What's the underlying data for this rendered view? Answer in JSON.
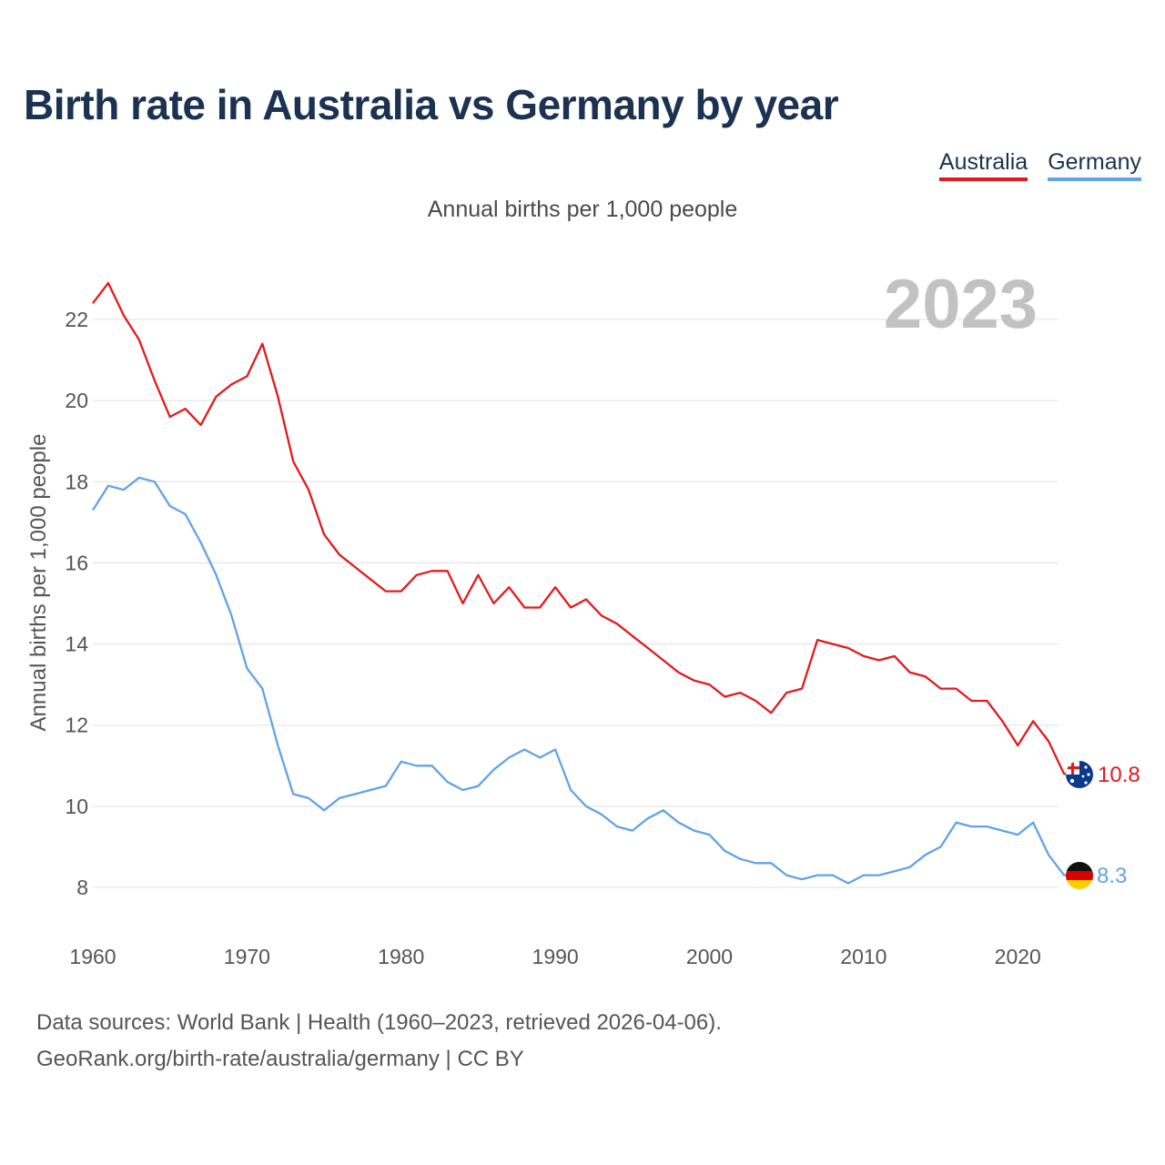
{
  "header": {
    "title": "Birth rate in Australia vs Germany by year",
    "subtitle": "Annual births per 1,000 people"
  },
  "legend": [
    {
      "label": "Australia",
      "color": "#e31a1c"
    },
    {
      "label": "Germany",
      "color": "#62a3e6"
    }
  ],
  "year_watermark": "2023",
  "chart_data": {
    "type": "line",
    "title": "Birth rate in Australia vs Germany by year",
    "subtitle": "Annual births per 1,000 people",
    "xlabel": "",
    "ylabel": "Annual births per 1,000 people",
    "xlim": [
      1960,
      2023
    ],
    "ylim": [
      7,
      23.3
    ],
    "x_ticks": [
      1960,
      1970,
      1980,
      1990,
      2000,
      2010,
      2020
    ],
    "y_ticks": [
      8,
      10,
      12,
      14,
      16,
      18,
      20,
      22
    ],
    "grid": true,
    "legend_position": "top-right",
    "x": [
      1960,
      1961,
      1962,
      1963,
      1964,
      1965,
      1966,
      1967,
      1968,
      1969,
      1970,
      1971,
      1972,
      1973,
      1974,
      1975,
      1976,
      1977,
      1978,
      1979,
      1980,
      1981,
      1982,
      1983,
      1984,
      1985,
      1986,
      1987,
      1988,
      1989,
      1990,
      1991,
      1992,
      1993,
      1994,
      1995,
      1996,
      1997,
      1998,
      1999,
      2000,
      2001,
      2002,
      2003,
      2004,
      2005,
      2006,
      2007,
      2008,
      2009,
      2010,
      2011,
      2012,
      2013,
      2014,
      2015,
      2016,
      2017,
      2018,
      2019,
      2020,
      2021,
      2022,
      2023
    ],
    "series": [
      {
        "name": "Australia",
        "color": "#e31a1c",
        "end_label": "10.8",
        "flag": "australia-flag",
        "values": [
          22.4,
          22.9,
          22.1,
          21.5,
          20.5,
          19.6,
          19.8,
          19.4,
          20.1,
          20.4,
          20.6,
          21.4,
          20.1,
          18.5,
          17.8,
          16.7,
          16.2,
          15.9,
          15.6,
          15.3,
          15.3,
          15.7,
          15.8,
          15.8,
          15.0,
          15.7,
          15.0,
          15.4,
          14.9,
          14.9,
          15.4,
          14.9,
          15.1,
          14.7,
          14.5,
          14.2,
          13.9,
          13.6,
          13.3,
          13.1,
          13.0,
          12.7,
          12.8,
          12.6,
          12.3,
          12.8,
          12.9,
          14.1,
          14.0,
          13.9,
          13.7,
          13.6,
          13.7,
          13.3,
          13.2,
          12.9,
          12.9,
          12.6,
          12.6,
          12.1,
          11.5,
          12.1,
          11.6,
          10.8
        ]
      },
      {
        "name": "Germany",
        "color": "#62a3e6",
        "end_label": "8.3",
        "flag": "germany-flag",
        "values": [
          17.3,
          17.9,
          17.8,
          18.1,
          18.0,
          17.4,
          17.2,
          16.5,
          15.7,
          14.7,
          13.4,
          12.9,
          11.5,
          10.3,
          10.2,
          9.9,
          10.2,
          10.3,
          10.4,
          10.5,
          11.1,
          11.0,
          11.0,
          10.6,
          10.4,
          10.5,
          10.9,
          11.2,
          11.4,
          11.2,
          11.4,
          10.4,
          10.0,
          9.8,
          9.5,
          9.4,
          9.7,
          9.9,
          9.6,
          9.4,
          9.3,
          8.9,
          8.7,
          8.6,
          8.6,
          8.3,
          8.2,
          8.3,
          8.3,
          8.1,
          8.3,
          8.3,
          8.4,
          8.5,
          8.8,
          9.0,
          9.6,
          9.5,
          9.5,
          9.4,
          9.3,
          9.6,
          8.8,
          8.3
        ]
      }
    ]
  },
  "footer": {
    "sources": "Data sources: World Bank | Health (1960–2023, retrieved 2026-04-06).",
    "credit": "GeoRank.org/birth-rate/australia/germany | CC BY"
  }
}
